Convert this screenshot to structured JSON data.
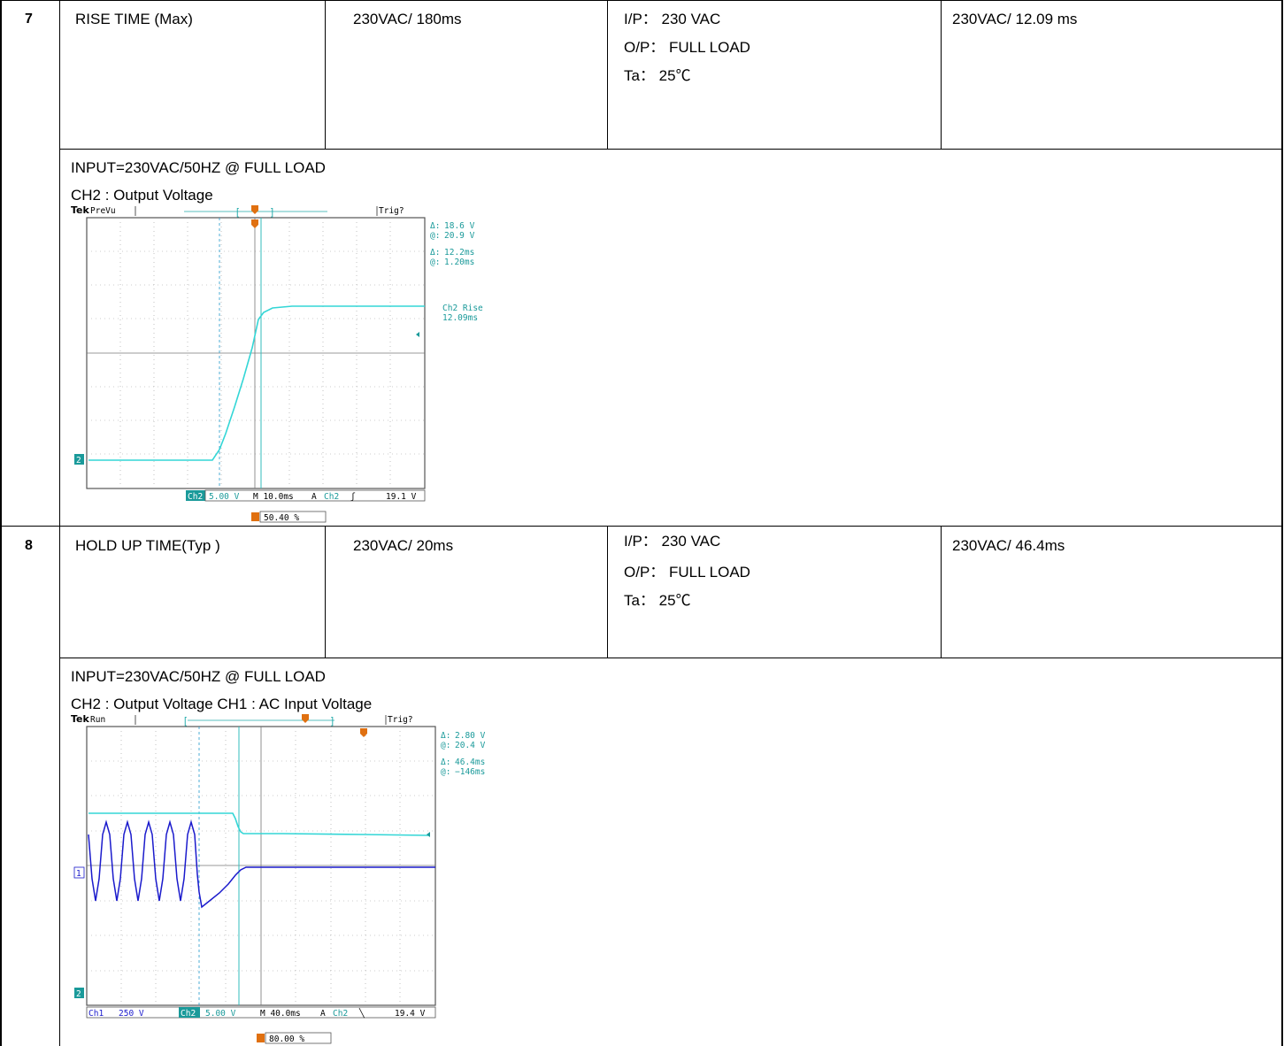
{
  "rows": [
    {
      "number": "7",
      "item": "RISE TIME (Max)",
      "spec": "230VAC/ 180ms",
      "conditions": [
        "I/P：   230 VAC",
        "O/P： FULL LOAD",
        "Ta： 25℃"
      ],
      "result": "230VAC/    12.09 ms",
      "figure": {
        "caption_line1": "INPUT=230VAC/50HZ @ FULL LOAD",
        "caption_line2": "CH2   :   Output Voltage",
        "scope": {
          "brand": "Tek",
          "mode": "PreVu",
          "trig_status": "Trig?",
          "readout_delta_v": "18.6 V",
          "readout_at_v": "20.9 V",
          "readout_delta_t": "12.2ms",
          "readout_at_t": "1.20ms",
          "measure_label": "Ch2 Rise",
          "measure_value": "12.09ms",
          "channel_marker": "2",
          "bottom_ch": "Ch2",
          "bottom_scale": "5.00 V",
          "bottom_time": "M 10.0ms",
          "bottom_a": "A",
          "bottom_trig_ch": "Ch2",
          "bottom_trig_slope": "ʃ",
          "bottom_trig_level": "19.1 V",
          "trig_pos": "50.40 %",
          "delta_sym": "Δ:",
          "at_sym": "@:"
        }
      }
    },
    {
      "number": "8",
      "item": "HOLD UP TIME(Typ )",
      "spec": "230VAC/ 20ms",
      "conditions": [
        "I/P：   230 VAC",
        "O/P： FULL LOAD",
        "Ta： 25℃"
      ],
      "result": "230VAC/    46.4ms",
      "figure": {
        "caption_line1": "INPUT=230VAC/50HZ @ FULL LOAD",
        "caption_line2": "CH2   :   Output Voltage CH1   :   AC Input Voltage",
        "scope": {
          "brand": "Tek",
          "mode": "Run",
          "trig_status": "Trig?",
          "readout_delta_v": "2.80 V",
          "readout_at_v": "20.4 V",
          "readout_delta_t": "46.4ms",
          "readout_at_t": "−146ms",
          "channel_marker_1": "1",
          "channel_marker_2": "2",
          "bottom_ch1": "Ch1",
          "bottom_ch1_scale": "250 V",
          "bottom_ch2": "Ch2",
          "bottom_ch2_scale": "5.00 V",
          "bottom_time": "M 40.0ms",
          "bottom_a": "A",
          "bottom_trig_ch": "Ch2",
          "bottom_trig_slope": "╲",
          "bottom_trig_level": "19.4 V",
          "trig_pos": "80.00 %",
          "delta_sym": "Δ:",
          "at_sym": "@:"
        }
      }
    }
  ],
  "colors": {
    "ch2_trace": "#33d6d6",
    "ch1_trace": "#1a1acc",
    "trigger": "#e07010",
    "readout": "#1a9a9a"
  }
}
